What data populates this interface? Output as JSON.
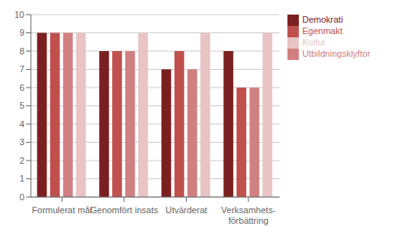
{
  "chart_data": {
    "type": "bar",
    "categories": [
      "Formulerat mål",
      "Genomfört insats",
      "Utvärderat",
      "Verksamhets-\nförbättring"
    ],
    "series": [
      {
        "name": "Demokrati",
        "values": [
          9,
          8,
          7,
          8
        ],
        "color": "#7B2020"
      },
      {
        "name": "Egenmakt",
        "values": [
          9,
          8,
          8,
          6
        ],
        "color": "#C0504D"
      },
      {
        "name": "Utbildningsklyftor",
        "values": [
          9,
          8,
          7,
          6
        ],
        "color": "#D08080"
      },
      {
        "name": "Kultur",
        "values": [
          9,
          9,
          9,
          9
        ],
        "color": "#E8C4C4"
      }
    ],
    "ylim": [
      0,
      10
    ],
    "yticks": [
      0,
      1,
      2,
      3,
      4,
      5,
      6,
      7,
      8,
      9,
      10
    ],
    "grid": true,
    "legend": "upper right"
  }
}
